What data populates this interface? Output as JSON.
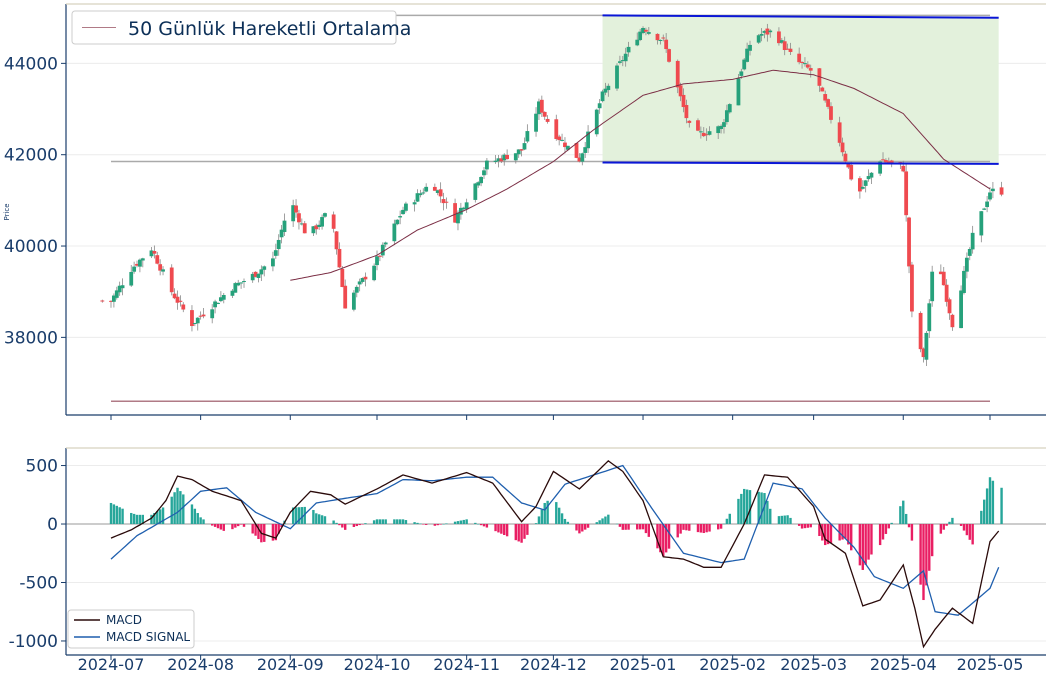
{
  "colors": {
    "up": "#26a17b",
    "down": "#ef4a4f",
    "ma": "#7b2e45",
    "channel": "#0a16d6",
    "channel_fill": "#e3f1dc",
    "level": "#aaaaaa",
    "low_level": "#b07a86",
    "macd": "#2a0a0a",
    "signal": "#1f5fae",
    "hist_pos": "#26a69a",
    "hist_neg": "#e91e63",
    "axis": "#1a3d6b",
    "grid": "#ececec"
  },
  "x_ticks": [
    "2024-07",
    "2024-08",
    "2024-09",
    "2024-10",
    "2024-11",
    "2024-12",
    "2025-01",
    "2025-02",
    "2025-03",
    "2025-04",
    "2025-05"
  ],
  "chart_data": [
    {
      "type": "candlestick",
      "ylabel": "Price",
      "ylim": [
        36300,
        45300
      ],
      "yticks": [
        38000,
        40000,
        42000,
        44000
      ],
      "legend": [
        "50 Günlük Hareketli Ortalama"
      ],
      "legend_position": "top-left",
      "moving_average_anchors": [
        [
          "2024-09-01",
          39250
        ],
        [
          "2024-09-15",
          39420
        ],
        [
          "2024-10-01",
          39800
        ],
        [
          "2024-10-15",
          40350
        ],
        [
          "2024-11-01",
          40800
        ],
        [
          "2024-11-15",
          41250
        ],
        [
          "2024-12-01",
          41850
        ],
        [
          "2024-12-15",
          42550
        ],
        [
          "2025-01-01",
          43300
        ],
        [
          "2025-01-15",
          43550
        ],
        [
          "2025-02-01",
          43650
        ],
        [
          "2025-02-15",
          43850
        ],
        [
          "2025-03-01",
          43750
        ],
        [
          "2025-03-15",
          43450
        ],
        [
          "2025-04-01",
          42900
        ],
        [
          "2025-04-15",
          41900
        ],
        [
          "2025-05-01",
          41250
        ]
      ],
      "close_anchors": [
        [
          "2024-07-01",
          38800
        ],
        [
          "2024-07-08",
          39500
        ],
        [
          "2024-07-15",
          39950
        ],
        [
          "2024-07-22",
          39000
        ],
        [
          "2024-07-29",
          38300
        ],
        [
          "2024-08-05",
          38700
        ],
        [
          "2024-08-12",
          39100
        ],
        [
          "2024-08-19",
          39350
        ],
        [
          "2024-08-26",
          39700
        ],
        [
          "2024-09-01",
          41000
        ],
        [
          "2024-09-07",
          40200
        ],
        [
          "2024-09-15",
          40800
        ],
        [
          "2024-09-20",
          38700
        ],
        [
          "2024-10-01",
          39700
        ],
        [
          "2024-10-10",
          40800
        ],
        [
          "2024-10-20",
          41400
        ],
        [
          "2024-10-28",
          40600
        ],
        [
          "2024-11-08",
          41800
        ],
        [
          "2024-11-20",
          42100
        ],
        [
          "2024-11-26",
          43100
        ],
        [
          "2024-12-01",
          42500
        ],
        [
          "2024-12-10",
          41900
        ],
        [
          "2024-12-18",
          43300
        ],
        [
          "2024-12-25",
          44100
        ],
        [
          "2025-01-01",
          44800
        ],
        [
          "2025-01-08",
          44500
        ],
        [
          "2025-01-18",
          42400
        ],
        [
          "2025-01-28",
          42600
        ],
        [
          "2025-02-08",
          44600
        ],
        [
          "2025-02-15",
          44700
        ],
        [
          "2025-02-22",
          44100
        ],
        [
          "2025-03-01",
          43800
        ],
        [
          "2025-03-10",
          42300
        ],
        [
          "2025-03-16",
          41100
        ],
        [
          "2025-03-24",
          41900
        ],
        [
          "2025-04-01",
          41700
        ],
        [
          "2025-04-04",
          38500
        ],
        [
          "2025-04-08",
          37500
        ],
        [
          "2025-04-12",
          40000
        ],
        [
          "2025-04-18",
          38300
        ],
        [
          "2025-04-25",
          40200
        ],
        [
          "2025-05-01",
          41200
        ]
      ],
      "channel": {
        "x": [
          "2024-12-18",
          "2025-05-04"
        ],
        "upper": [
          45050,
          45000
        ],
        "lower": [
          41830,
          41800
        ]
      },
      "horizontal_levels": [
        {
          "value": 45050,
          "x": [
            "2024-07-01",
            "2025-05-01"
          ]
        },
        {
          "value": 41850,
          "x": [
            "2024-07-01",
            "2025-05-01"
          ]
        },
        {
          "value": 36600,
          "x": [
            "2024-07-01",
            "2025-05-01"
          ]
        }
      ]
    },
    {
      "type": "line",
      "ylim": [
        -1120,
        650
      ],
      "yticks": [
        500,
        0,
        -500,
        -1000
      ],
      "legend_position": "lower-left",
      "series": [
        {
          "name": "MACD",
          "anchors": [
            [
              "2024-07-01",
              -120
            ],
            [
              "2024-07-08",
              -50
            ],
            [
              "2024-07-15",
              50
            ],
            [
              "2024-07-20",
              200
            ],
            [
              "2024-07-24",
              410
            ],
            [
              "2024-07-29",
              380
            ],
            [
              "2024-08-05",
              280
            ],
            [
              "2024-08-15",
              200
            ],
            [
              "2024-08-22",
              -80
            ],
            [
              "2024-08-27",
              -120
            ],
            [
              "2024-09-01",
              100
            ],
            [
              "2024-09-08",
              280
            ],
            [
              "2024-09-15",
              250
            ],
            [
              "2024-09-20",
              170
            ],
            [
              "2024-10-01",
              300
            ],
            [
              "2024-10-10",
              420
            ],
            [
              "2024-10-20",
              350
            ],
            [
              "2024-11-01",
              440
            ],
            [
              "2024-11-10",
              350
            ],
            [
              "2024-11-20",
              20
            ],
            [
              "2024-11-25",
              150
            ],
            [
              "2024-12-01",
              450
            ],
            [
              "2024-12-10",
              300
            ],
            [
              "2024-12-20",
              540
            ],
            [
              "2024-12-25",
              450
            ],
            [
              "2025-01-01",
              200
            ],
            [
              "2025-01-08",
              -280
            ],
            [
              "2025-01-15",
              -300
            ],
            [
              "2025-01-22",
              -370
            ],
            [
              "2025-01-28",
              -370
            ],
            [
              "2025-02-05",
              0
            ],
            [
              "2025-02-12",
              420
            ],
            [
              "2025-02-20",
              400
            ],
            [
              "2025-03-01",
              150
            ],
            [
              "2025-03-05",
              -130
            ],
            [
              "2025-03-12",
              -250
            ],
            [
              "2025-03-18",
              -700
            ],
            [
              "2025-03-24",
              -650
            ],
            [
              "2025-04-01",
              -350
            ],
            [
              "2025-04-05",
              -720
            ],
            [
              "2025-04-08",
              -1050
            ],
            [
              "2025-04-12",
              -900
            ],
            [
              "2025-04-18",
              -720
            ],
            [
              "2025-04-25",
              -850
            ],
            [
              "2025-05-01",
              -150
            ],
            [
              "2025-05-04",
              -60
            ]
          ]
        },
        {
          "name": "MACD SIGNAL",
          "anchors": [
            [
              "2024-07-01",
              -300
            ],
            [
              "2024-07-10",
              -100
            ],
            [
              "2024-07-24",
              100
            ],
            [
              "2024-08-01",
              280
            ],
            [
              "2024-08-10",
              310
            ],
            [
              "2024-08-20",
              100
            ],
            [
              "2024-09-01",
              -40
            ],
            [
              "2024-09-10",
              180
            ],
            [
              "2024-09-20",
              220
            ],
            [
              "2024-10-01",
              260
            ],
            [
              "2024-10-10",
              380
            ],
            [
              "2024-10-20",
              370
            ],
            [
              "2024-11-01",
              400
            ],
            [
              "2024-11-10",
              400
            ],
            [
              "2024-11-20",
              180
            ],
            [
              "2024-11-28",
              120
            ],
            [
              "2024-12-05",
              340
            ],
            [
              "2024-12-15",
              420
            ],
            [
              "2024-12-25",
              500
            ],
            [
              "2025-01-05",
              100
            ],
            [
              "2025-01-15",
              -250
            ],
            [
              "2025-01-28",
              -330
            ],
            [
              "2025-02-05",
              -300
            ],
            [
              "2025-02-15",
              350
            ],
            [
              "2025-02-25",
              300
            ],
            [
              "2025-03-05",
              50
            ],
            [
              "2025-03-15",
              -200
            ],
            [
              "2025-03-22",
              -450
            ],
            [
              "2025-04-01",
              -550
            ],
            [
              "2025-04-08",
              -400
            ],
            [
              "2025-04-12",
              -750
            ],
            [
              "2025-04-20",
              -780
            ],
            [
              "2025-05-01",
              -550
            ],
            [
              "2025-05-04",
              -370
            ]
          ]
        }
      ],
      "histogram": "MACD - MACD SIGNAL"
    }
  ]
}
